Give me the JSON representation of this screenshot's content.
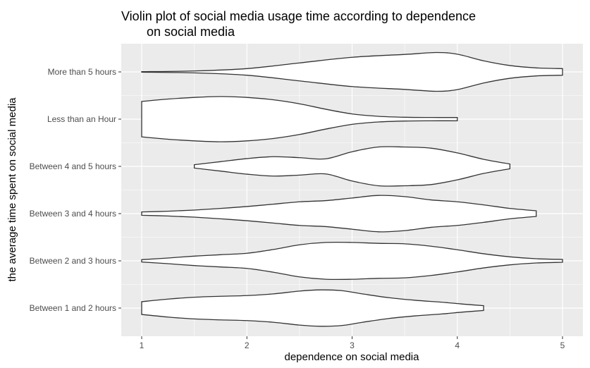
{
  "chart_data": {
    "type": "violin",
    "title_lines": [
      "Violin plot of social media usage time according to dependence",
      "on social media"
    ],
    "xlabel": "dependence on social media",
    "ylabel": "the average time spent on social media",
    "xlim": [
      0.8,
      5.2
    ],
    "x_ticks": [
      1,
      2,
      3,
      4,
      5
    ],
    "categories": [
      "Between 1 and 2 hours",
      "Between 2 and 3 hours",
      "Between 3 and 4 hours",
      "Between 4 and 5 hours",
      "Less than an Hour",
      "More than 5 hours"
    ],
    "grid": true,
    "violins": [
      {
        "category": "Between 1 and 2 hours",
        "density": [
          [
            1.0,
            0.27
          ],
          [
            1.25,
            0.38
          ],
          [
            1.5,
            0.46
          ],
          [
            1.75,
            0.5
          ],
          [
            2.0,
            0.53
          ],
          [
            2.25,
            0.6
          ],
          [
            2.5,
            0.72
          ],
          [
            2.7,
            0.77
          ],
          [
            2.9,
            0.74
          ],
          [
            3.1,
            0.6
          ],
          [
            3.35,
            0.44
          ],
          [
            3.6,
            0.33
          ],
          [
            3.85,
            0.25
          ],
          [
            4.05,
            0.17
          ],
          [
            4.25,
            0.1
          ]
        ]
      },
      {
        "category": "Between 2 and 3 hours",
        "density": [
          [
            1.0,
            0.05
          ],
          [
            1.25,
            0.12
          ],
          [
            1.5,
            0.2
          ],
          [
            1.75,
            0.26
          ],
          [
            2.0,
            0.32
          ],
          [
            2.25,
            0.48
          ],
          [
            2.5,
            0.68
          ],
          [
            2.75,
            0.78
          ],
          [
            3.0,
            0.78
          ],
          [
            3.25,
            0.74
          ],
          [
            3.5,
            0.72
          ],
          [
            3.75,
            0.62
          ],
          [
            4.0,
            0.47
          ],
          [
            4.25,
            0.3
          ],
          [
            4.5,
            0.17
          ],
          [
            4.75,
            0.09
          ],
          [
            5.0,
            0.06
          ]
        ]
      },
      {
        "category": "Between 3 and 4 hours",
        "density": [
          [
            1.0,
            0.07
          ],
          [
            1.25,
            0.1
          ],
          [
            1.5,
            0.15
          ],
          [
            1.75,
            0.22
          ],
          [
            2.0,
            0.3
          ],
          [
            2.25,
            0.4
          ],
          [
            2.5,
            0.5
          ],
          [
            2.75,
            0.55
          ],
          [
            3.0,
            0.66
          ],
          [
            3.25,
            0.77
          ],
          [
            3.5,
            0.72
          ],
          [
            3.75,
            0.58
          ],
          [
            4.0,
            0.5
          ],
          [
            4.25,
            0.37
          ],
          [
            4.5,
            0.22
          ],
          [
            4.75,
            0.12
          ]
        ]
      },
      {
        "category": "Between 4 and 5 hours",
        "density": [
          [
            1.5,
            0.07
          ],
          [
            1.75,
            0.2
          ],
          [
            2.0,
            0.33
          ],
          [
            2.25,
            0.41
          ],
          [
            2.5,
            0.37
          ],
          [
            2.75,
            0.32
          ],
          [
            3.0,
            0.62
          ],
          [
            3.25,
            0.82
          ],
          [
            3.5,
            0.82
          ],
          [
            3.75,
            0.77
          ],
          [
            4.0,
            0.57
          ],
          [
            4.25,
            0.3
          ],
          [
            4.5,
            0.1
          ]
        ]
      },
      {
        "category": "Less than an Hour",
        "density": [
          [
            1.0,
            0.75
          ],
          [
            1.25,
            0.85
          ],
          [
            1.5,
            0.92
          ],
          [
            1.75,
            0.96
          ],
          [
            2.0,
            0.92
          ],
          [
            2.25,
            0.82
          ],
          [
            2.5,
            0.65
          ],
          [
            2.75,
            0.42
          ],
          [
            3.0,
            0.22
          ],
          [
            3.25,
            0.12
          ],
          [
            3.5,
            0.08
          ],
          [
            3.75,
            0.07
          ],
          [
            4.0,
            0.07
          ]
        ]
      },
      {
        "category": "More than 5 hours",
        "density": [
          [
            1.0,
            0.01
          ],
          [
            1.5,
            0.04
          ],
          [
            2.0,
            0.14
          ],
          [
            2.5,
            0.38
          ],
          [
            3.0,
            0.62
          ],
          [
            3.5,
            0.74
          ],
          [
            3.8,
            0.82
          ],
          [
            4.0,
            0.75
          ],
          [
            4.25,
            0.47
          ],
          [
            4.5,
            0.27
          ],
          [
            4.75,
            0.17
          ],
          [
            5.0,
            0.14
          ]
        ]
      }
    ]
  },
  "colors": {
    "panel_background": "#ebebeb",
    "grid_major": "#ffffff",
    "violin_fill": "#ffffff",
    "violin_outline": "#333333",
    "tick_label": "#4d4d4d"
  }
}
